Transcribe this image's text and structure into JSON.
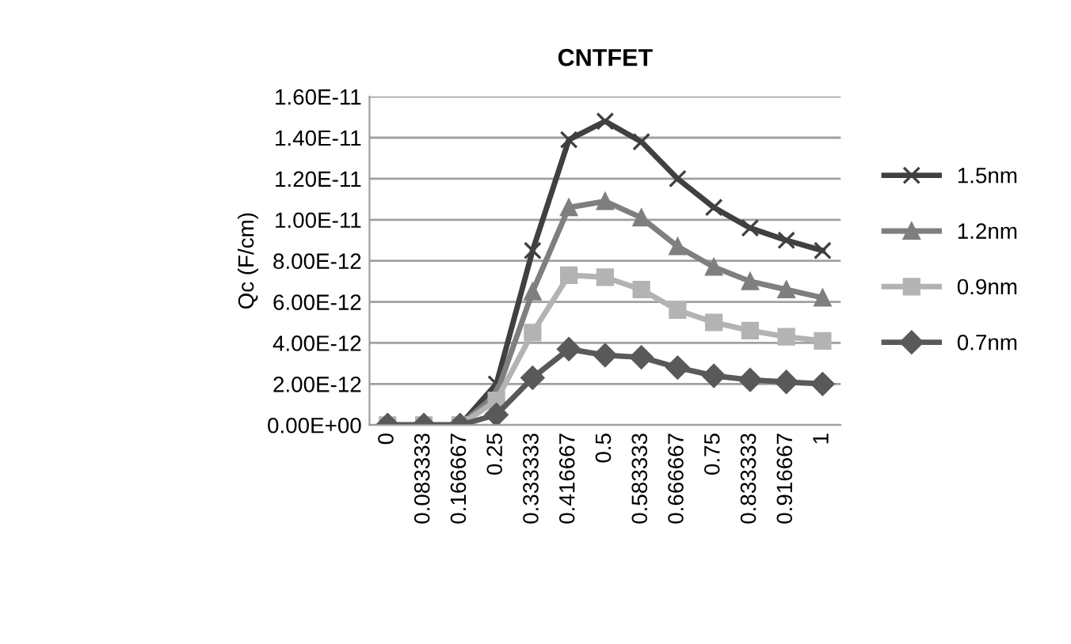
{
  "chart_data": {
    "type": "line",
    "title": "CNTFET",
    "ylabel": "Qc (F/cm)",
    "categories": [
      "0",
      "0.083333",
      "0.166667",
      "0.25",
      "0.333333",
      "0.416667",
      "0.5",
      "0.583333",
      "0.666667",
      "0.75",
      "0.833333",
      "0.916667",
      "1"
    ],
    "series": [
      {
        "name": "1.5nm",
        "color": "#404040",
        "marker": "cross",
        "values": [
          0,
          0,
          0,
          2e-12,
          8.5e-12,
          1.39e-11,
          1.48e-11,
          1.38e-11,
          1.2e-11,
          1.06e-11,
          9.6e-12,
          9e-12,
          8.5e-12
        ]
      },
      {
        "name": "1.2nm",
        "color": "#7f7f7f",
        "marker": "triangle",
        "values": [
          0,
          0,
          0,
          1.5e-12,
          6.5e-12,
          1.06e-11,
          1.09e-11,
          1.01e-11,
          8.7e-12,
          7.7e-12,
          7e-12,
          6.6e-12,
          6.2e-12
        ]
      },
      {
        "name": "0.9nm",
        "color": "#b3b3b3",
        "marker": "square",
        "values": [
          0,
          0,
          0,
          1.2e-12,
          4.5e-12,
          7.3e-12,
          7.2e-12,
          6.6e-12,
          5.6e-12,
          5e-12,
          4.6e-12,
          4.3e-12,
          4.1e-12
        ]
      },
      {
        "name": "0.7nm",
        "color": "#595959",
        "marker": "diamond",
        "values": [
          0,
          0,
          0,
          5e-13,
          2.3e-12,
          3.7e-12,
          3.4e-12,
          3.3e-12,
          2.8e-12,
          2.4e-12,
          2.2e-12,
          2.1e-12,
          2e-12
        ]
      }
    ],
    "ylim": [
      0,
      1.6e-11
    ],
    "yticks": [
      {
        "value": 0,
        "label": "0.00E+00"
      },
      {
        "value": 2e-12,
        "label": "2.00E-12"
      },
      {
        "value": 4e-12,
        "label": "4.00E-12"
      },
      {
        "value": 6e-12,
        "label": "6.00E-12"
      },
      {
        "value": 8e-12,
        "label": "8.00E-12"
      },
      {
        "value": 1e-11,
        "label": "1.00E-11"
      },
      {
        "value": 1.2e-11,
        "label": "1.20E-11"
      },
      {
        "value": 1.4e-11,
        "label": "1.40E-11"
      },
      {
        "value": 1.6e-11,
        "label": "1.60E-11"
      }
    ],
    "grid": "y",
    "legend": "right",
    "line_style": "solid"
  }
}
